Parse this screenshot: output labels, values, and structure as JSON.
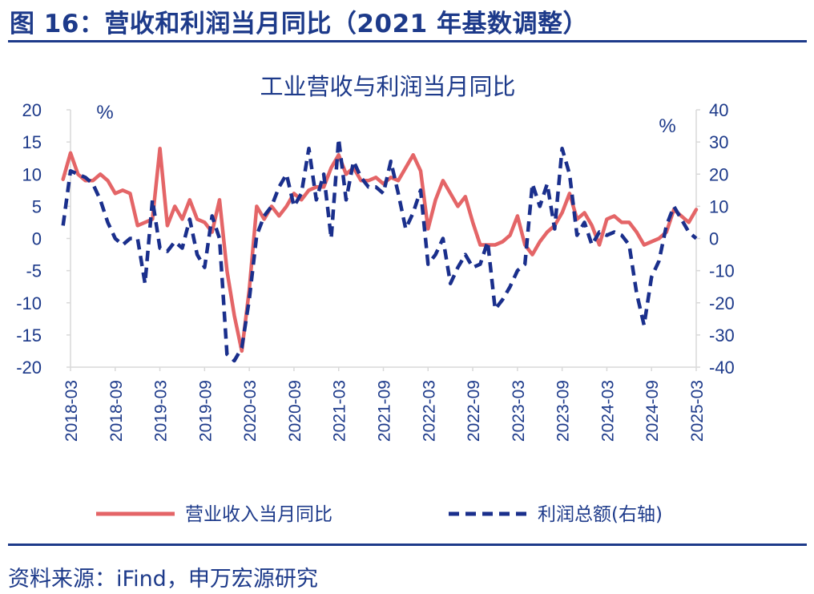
{
  "figure": {
    "title": "图 16：营收和利润当月同比（2021 年基数调整）",
    "source": "资料来源：iFind，申万宏源研究"
  },
  "colors": {
    "revenue": "#e46567",
    "profit": "#1a2f8c",
    "text": "#1d3a8a",
    "axis": "#d9d9d9"
  },
  "chart_data": {
    "type": "line",
    "title": "工业营收与利润当月同比",
    "left_axis": {
      "unit": "%",
      "ylim": [
        -20,
        20
      ],
      "ticks": [
        20,
        15,
        10,
        5,
        0,
        -5,
        -10,
        -15,
        -20
      ]
    },
    "right_axis": {
      "unit": "%",
      "ylim": [
        -40,
        40
      ],
      "ticks": [
        40,
        30,
        20,
        10,
        0,
        -10,
        -20,
        -30,
        -40
      ]
    },
    "x_ticks": [
      "2018-03",
      "2018-09",
      "2019-03",
      "2019-09",
      "2020-03",
      "2020-09",
      "2021-03",
      "2021-09",
      "2022-03",
      "2022-09",
      "2023-03",
      "2023-09",
      "2024-03",
      "2024-09",
      "2025-03"
    ],
    "x": [
      "2018-02",
      "2018-03",
      "2018-04",
      "2018-05",
      "2018-06",
      "2018-07",
      "2018-08",
      "2018-09",
      "2018-10",
      "2018-11",
      "2018-12",
      "2019-01",
      "2019-02",
      "2019-03",
      "2019-04",
      "2019-05",
      "2019-06",
      "2019-07",
      "2019-08",
      "2019-09",
      "2019-10",
      "2019-11",
      "2019-12",
      "2020-01",
      "2020-02",
      "2020-03",
      "2020-04",
      "2020-05",
      "2020-06",
      "2020-07",
      "2020-08",
      "2020-09",
      "2020-10",
      "2020-11",
      "2020-12",
      "2021-01",
      "2021-02",
      "2021-03",
      "2021-04",
      "2021-05",
      "2021-06",
      "2021-07",
      "2021-08",
      "2021-09",
      "2021-10",
      "2021-11",
      "2021-12",
      "2022-01",
      "2022-02",
      "2022-03",
      "2022-04",
      "2022-05",
      "2022-06",
      "2022-07",
      "2022-08",
      "2022-09",
      "2022-10",
      "2022-11",
      "2022-12",
      "2023-01",
      "2023-02",
      "2023-03",
      "2023-04",
      "2023-05",
      "2023-06",
      "2023-07",
      "2023-08",
      "2023-09",
      "2023-10",
      "2023-11",
      "2023-12",
      "2024-01",
      "2024-02",
      "2024-03",
      "2024-04",
      "2024-05",
      "2024-06",
      "2024-07",
      "2024-08",
      "2024-09",
      "2024-10",
      "2024-11",
      "2024-12",
      "2025-01",
      "2025-02",
      "2025-03"
    ],
    "series": [
      {
        "name": "营业收入当月同比",
        "axis": "left",
        "style": "solid",
        "values": [
          9.2,
          13.3,
          10.0,
          9.0,
          9.0,
          10.0,
          9.0,
          7.0,
          7.5,
          7.0,
          2.0,
          2.5,
          3.0,
          14.0,
          2.0,
          5.0,
          3.0,
          6.0,
          3.0,
          2.5,
          1.0,
          6.0,
          -5.0,
          -12.0,
          -17.5,
          -8.0,
          5.0,
          3.0,
          5.0,
          3.5,
          5.0,
          7.0,
          6.0,
          7.5,
          8.0,
          8.0,
          11.0,
          13.0,
          10.0,
          11.0,
          9.0,
          9.0,
          9.5,
          8.5,
          9.5,
          9.0,
          11.0,
          13.0,
          10.5,
          1.5,
          6.0,
          9.0,
          7.0,
          5.0,
          6.5,
          2.5,
          -1.0,
          -1.0,
          -1.0,
          -0.5,
          0.5,
          3.5,
          -1.0,
          -2.5,
          -0.5,
          1.0,
          2.0,
          4.0,
          7.0,
          3.0,
          4.0,
          2.0,
          -1.0,
          3.0,
          3.5,
          2.5,
          2.5,
          1.0,
          -1.0,
          -0.5,
          0.0,
          1.0,
          4.5,
          3.5,
          2.5,
          4.5
        ]
      },
      {
        "name": "利润总额(右轴)",
        "axis": "right",
        "style": "dashed",
        "values": [
          4.0,
          21.0,
          20.0,
          19.0,
          17.0,
          12.0,
          5.0,
          0.0,
          -2.0,
          0.0,
          0.0,
          -14.0,
          12.0,
          -3.0,
          -4.0,
          -1.0,
          -3.0,
          6.0,
          -5.0,
          -9.0,
          7.0,
          0.0,
          -36.0,
          -38.0,
          -34.0,
          -19.0,
          1.0,
          7.0,
          10.0,
          16.0,
          20.0,
          10.0,
          14.0,
          28.0,
          12.0,
          20.0,
          0.0,
          31.0,
          12.0,
          24.0,
          19.0,
          16.0,
          16.0,
          14.0,
          24.0,
          14.0,
          3.0,
          8.0,
          15.0,
          -8.0,
          -5.0,
          0.0,
          -14.0,
          -9.0,
          -5.0,
          -9.0,
          -8.0,
          -1.0,
          -22.0,
          -19.0,
          -15.0,
          -10.0,
          -8.0,
          17.0,
          10.0,
          17.0,
          3.0,
          28.0,
          20.0,
          1.0,
          5.0,
          -2.0,
          2.0,
          1.0,
          2.0,
          1.0,
          -2.0,
          -17.0,
          -27.0,
          -12.0,
          -7.0,
          4.0,
          10.0,
          6.0,
          2.0,
          0.0
        ]
      }
    ],
    "legend": {
      "position": "bottom"
    },
    "grid": false
  }
}
